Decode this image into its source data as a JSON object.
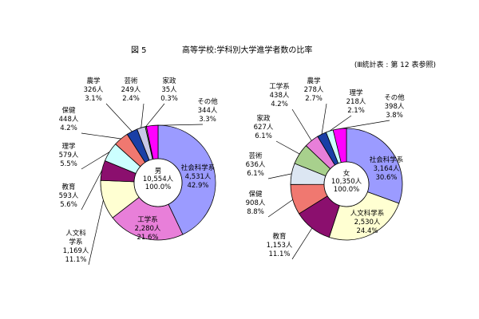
{
  "figure_number": "図 5",
  "figure_title": "高等学校:学科別大学進学者数の比率",
  "source_note": "(Ⅲ統計表 : 第 12 表参照)",
  "chart_data": [
    {
      "type": "pie",
      "variant": "donut",
      "center_label": [
        "男",
        "10,554人",
        "100.0%"
      ],
      "total": 10554,
      "slices": [
        {
          "category": "社会科学系",
          "count": 4531,
          "percent": 42.9,
          "color": "#9b9bff"
        },
        {
          "category": "工学系",
          "count": 2280,
          "percent": 21.6,
          "color": "#e87fd9"
        },
        {
          "category": "人文科学系",
          "count": 1169,
          "percent": 11.1,
          "color": "#ffffd2"
        },
        {
          "category": "教育",
          "count": 593,
          "percent": 5.6,
          "color": "#8b0f6e"
        },
        {
          "category": "理学",
          "count": 579,
          "percent": 5.5,
          "color": "#ccffff"
        },
        {
          "category": "保健",
          "count": 448,
          "percent": 4.2,
          "color": "#f07870"
        },
        {
          "category": "農学",
          "count": 326,
          "percent": 3.1,
          "color": "#1a3fa6"
        },
        {
          "category": "芸術",
          "count": 249,
          "percent": 2.4,
          "color": "#c8c8e6"
        },
        {
          "category": "家政",
          "count": 35,
          "percent": 0.3,
          "color": "#7db860"
        },
        {
          "category": "その他",
          "count": 344,
          "percent": 3.3,
          "color": "#ff00ff"
        }
      ],
      "labels": [
        {
          "lines": [
            "社会科学系",
            "4,531人",
            "42.9%"
          ]
        },
        {
          "lines": [
            "工学系",
            "2,280人",
            "21.6%"
          ]
        },
        {
          "lines": [
            "人文科",
            "学系",
            "1,169人",
            "11.1%"
          ]
        },
        {
          "lines": [
            "教育",
            "593人",
            "5.6%"
          ]
        },
        {
          "lines": [
            "理学",
            "579人",
            "5.5%"
          ]
        },
        {
          "lines": [
            "保健",
            "448人",
            "4.2%"
          ]
        },
        {
          "lines": [
            "農学",
            "326人",
            "3.1%"
          ]
        },
        {
          "lines": [
            "芸術",
            "249人",
            "2.4%"
          ]
        },
        {
          "lines": [
            "家政",
            "35人",
            "0.3%"
          ]
        },
        {
          "lines": [
            "その他",
            "344人",
            "3.3%"
          ]
        }
      ]
    },
    {
      "type": "pie",
      "variant": "donut",
      "center_label": [
        "女",
        "10,350人",
        "100.0%"
      ],
      "total": 10350,
      "slices": [
        {
          "category": "社会科学系",
          "count": 3164,
          "percent": 30.6,
          "color": "#9b9bff"
        },
        {
          "category": "人文科学系",
          "count": 2530,
          "percent": 24.4,
          "color": "#ffffd2"
        },
        {
          "category": "教育",
          "count": 1153,
          "percent": 11.1,
          "color": "#8b0f6e"
        },
        {
          "category": "保健",
          "count": 908,
          "percent": 8.8,
          "color": "#f07870"
        },
        {
          "category": "芸術",
          "count": 636,
          "percent": 6.1,
          "color": "#dce6f2"
        },
        {
          "category": "家政",
          "count": 627,
          "percent": 6.1,
          "color": "#a8d08d"
        },
        {
          "category": "工学系",
          "count": 438,
          "percent": 4.2,
          "color": "#e87fd9"
        },
        {
          "category": "農学",
          "count": 278,
          "percent": 2.7,
          "color": "#1a3fa6"
        },
        {
          "category": "理学",
          "count": 218,
          "percent": 2.1,
          "color": "#ccffff"
        },
        {
          "category": "その他",
          "count": 398,
          "percent": 3.8,
          "color": "#ff00ff"
        }
      ],
      "labels": [
        {
          "lines": [
            "社会科学系",
            "3,164人",
            "30.6%"
          ]
        },
        {
          "lines": [
            "人文科学系",
            "2,530人",
            "24.4%"
          ]
        },
        {
          "lines": [
            "教育",
            "1,153人",
            "11.1%"
          ]
        },
        {
          "lines": [
            "保健",
            "908人",
            "8.8%"
          ]
        },
        {
          "lines": [
            "芸術",
            "636人",
            "6.1%"
          ]
        },
        {
          "lines": [
            "家政",
            "627人",
            "6.1%"
          ]
        },
        {
          "lines": [
            "工学系",
            "438人",
            "4.2%"
          ]
        },
        {
          "lines": [
            "農学",
            "278人",
            "2.7%"
          ]
        },
        {
          "lines": [
            "理学",
            "218人",
            "2.1%"
          ]
        },
        {
          "lines": [
            "その他",
            "398人",
            "3.8%"
          ]
        }
      ]
    }
  ]
}
